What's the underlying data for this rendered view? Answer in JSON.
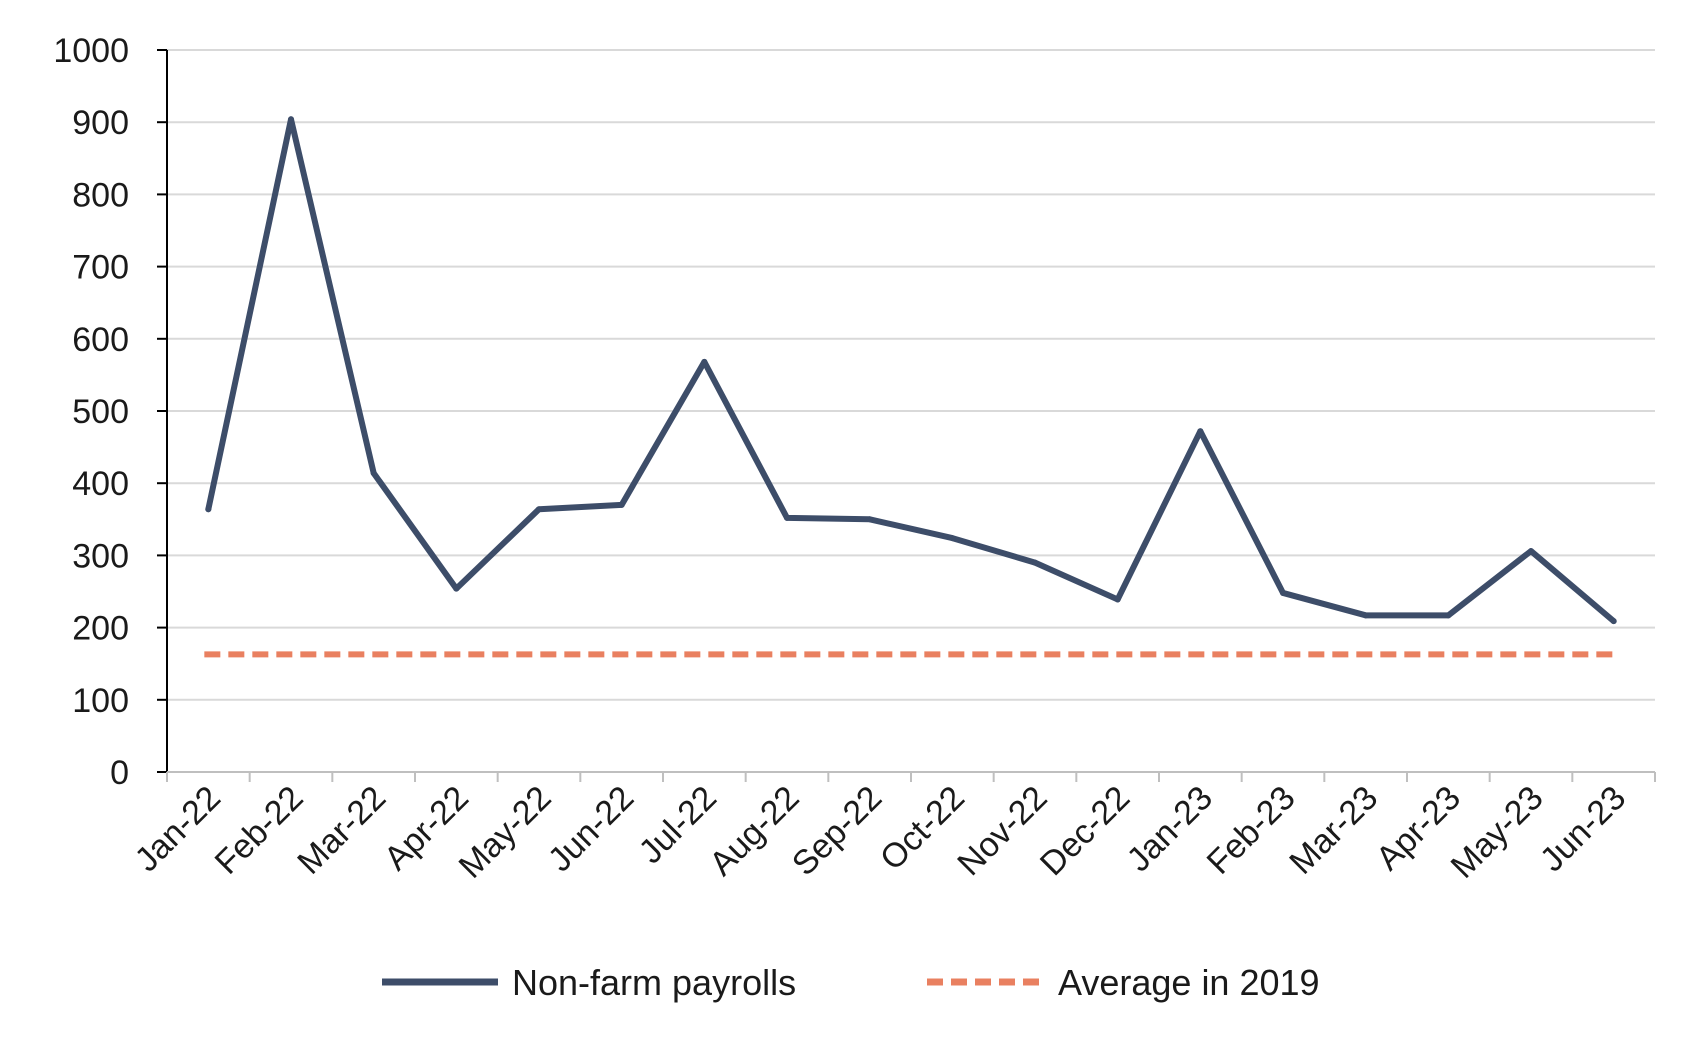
{
  "chart_data": {
    "type": "line",
    "categories": [
      "Jan-22",
      "Feb-22",
      "Mar-22",
      "Apr-22",
      "May-22",
      "Jun-22",
      "Jul-22",
      "Aug-22",
      "Sep-22",
      "Oct-22",
      "Nov-22",
      "Dec-22",
      "Jan-23",
      "Feb-23",
      "Mar-23",
      "Apr-23",
      "May-23",
      "Jun-23"
    ],
    "series": [
      {
        "name": "Non-farm payrolls",
        "color": "#3d4d69",
        "style": "solid",
        "values": [
          364,
          904,
          414,
          254,
          364,
          370,
          568,
          352,
          350,
          324,
          290,
          239,
          472,
          248,
          217,
          217,
          306,
          209
        ]
      },
      {
        "name": "Average in 2019",
        "color": "#e98060",
        "style": "dashed",
        "values": [
          163,
          163,
          163,
          163,
          163,
          163,
          163,
          163,
          163,
          163,
          163,
          163,
          163,
          163,
          163,
          163,
          163,
          163
        ]
      }
    ],
    "ylim": [
      0,
      1000
    ],
    "yticks": [
      "0",
      "100",
      "200",
      "300",
      "400",
      "500",
      "600",
      "700",
      "800",
      "900",
      "1000"
    ],
    "grid": true,
    "legend_position": "bottom"
  }
}
